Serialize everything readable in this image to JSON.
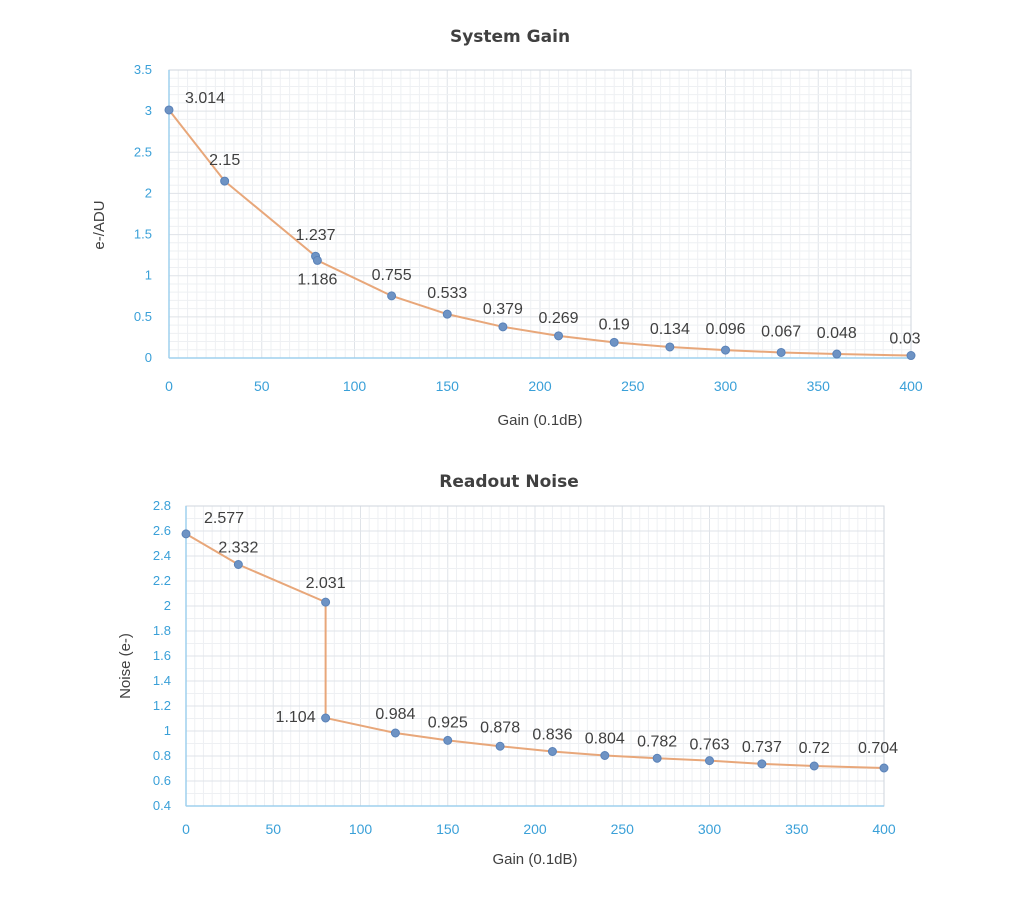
{
  "chart_data": [
    {
      "type": "line",
      "title": "System Gain",
      "xlabel": "Gain (0.1dB)",
      "ylabel": "e-/ADU",
      "xlim": [
        0,
        400
      ],
      "ylim": [
        0,
        3.5
      ],
      "xticks": [
        0,
        50,
        100,
        150,
        200,
        250,
        300,
        350,
        400
      ],
      "yticks": [
        0,
        0.5,
        1,
        1.5,
        2,
        2.5,
        3,
        3.5
      ],
      "grid": true,
      "legend": "none",
      "series": [
        {
          "x": [
            0,
            30,
            79,
            80,
            120,
            150,
            180,
            210,
            240,
            270,
            300,
            330,
            360,
            400
          ],
          "y": [
            3.014,
            2.15,
            1.237,
            1.186,
            0.755,
            0.533,
            0.379,
            0.269,
            0.19,
            0.134,
            0.096,
            0.067,
            0.048,
            0.03
          ],
          "labels": [
            "3.014",
            "2.15",
            "1.237",
            "1.186",
            "0.755",
            "0.533",
            "0.379",
            "0.269",
            "0.19",
            "0.134",
            "0.096",
            "0.067",
            "0.048",
            "0.03"
          ]
        }
      ],
      "colors": {
        "line": "#e8a77a",
        "point": "#6e93c4",
        "ticks": "#3aa0d8"
      }
    },
    {
      "type": "line",
      "title": "Readout Noise",
      "xlabel": "Gain (0.1dB)",
      "ylabel": "Noise (e-)",
      "xlim": [
        0,
        400
      ],
      "ylim": [
        0.4,
        2.8
      ],
      "xticks": [
        0,
        50,
        100,
        150,
        200,
        250,
        300,
        350,
        400
      ],
      "yticks": [
        0.4,
        0.6,
        0.8,
        1,
        1.2,
        1.4,
        1.6,
        1.8,
        2,
        2.2,
        2.4,
        2.6,
        2.8
      ],
      "grid": true,
      "legend": "none",
      "series": [
        {
          "x": [
            0,
            30,
            80,
            80,
            120,
            150,
            180,
            210,
            240,
            270,
            300,
            330,
            360,
            400
          ],
          "y": [
            2.577,
            2.332,
            2.031,
            1.104,
            0.984,
            0.925,
            0.878,
            0.836,
            0.804,
            0.782,
            0.763,
            0.737,
            0.72,
            0.704
          ],
          "labels": [
            "2.577",
            "2.332",
            "2.031",
            "1.104",
            "0.984",
            "0.925",
            "0.878",
            "0.836",
            "0.804",
            "0.782",
            "0.763",
            "0.737",
            "0.72",
            "0.704"
          ]
        }
      ],
      "colors": {
        "line": "#e8a77a",
        "point": "#6e93c4",
        "ticks": "#3aa0d8"
      }
    }
  ]
}
